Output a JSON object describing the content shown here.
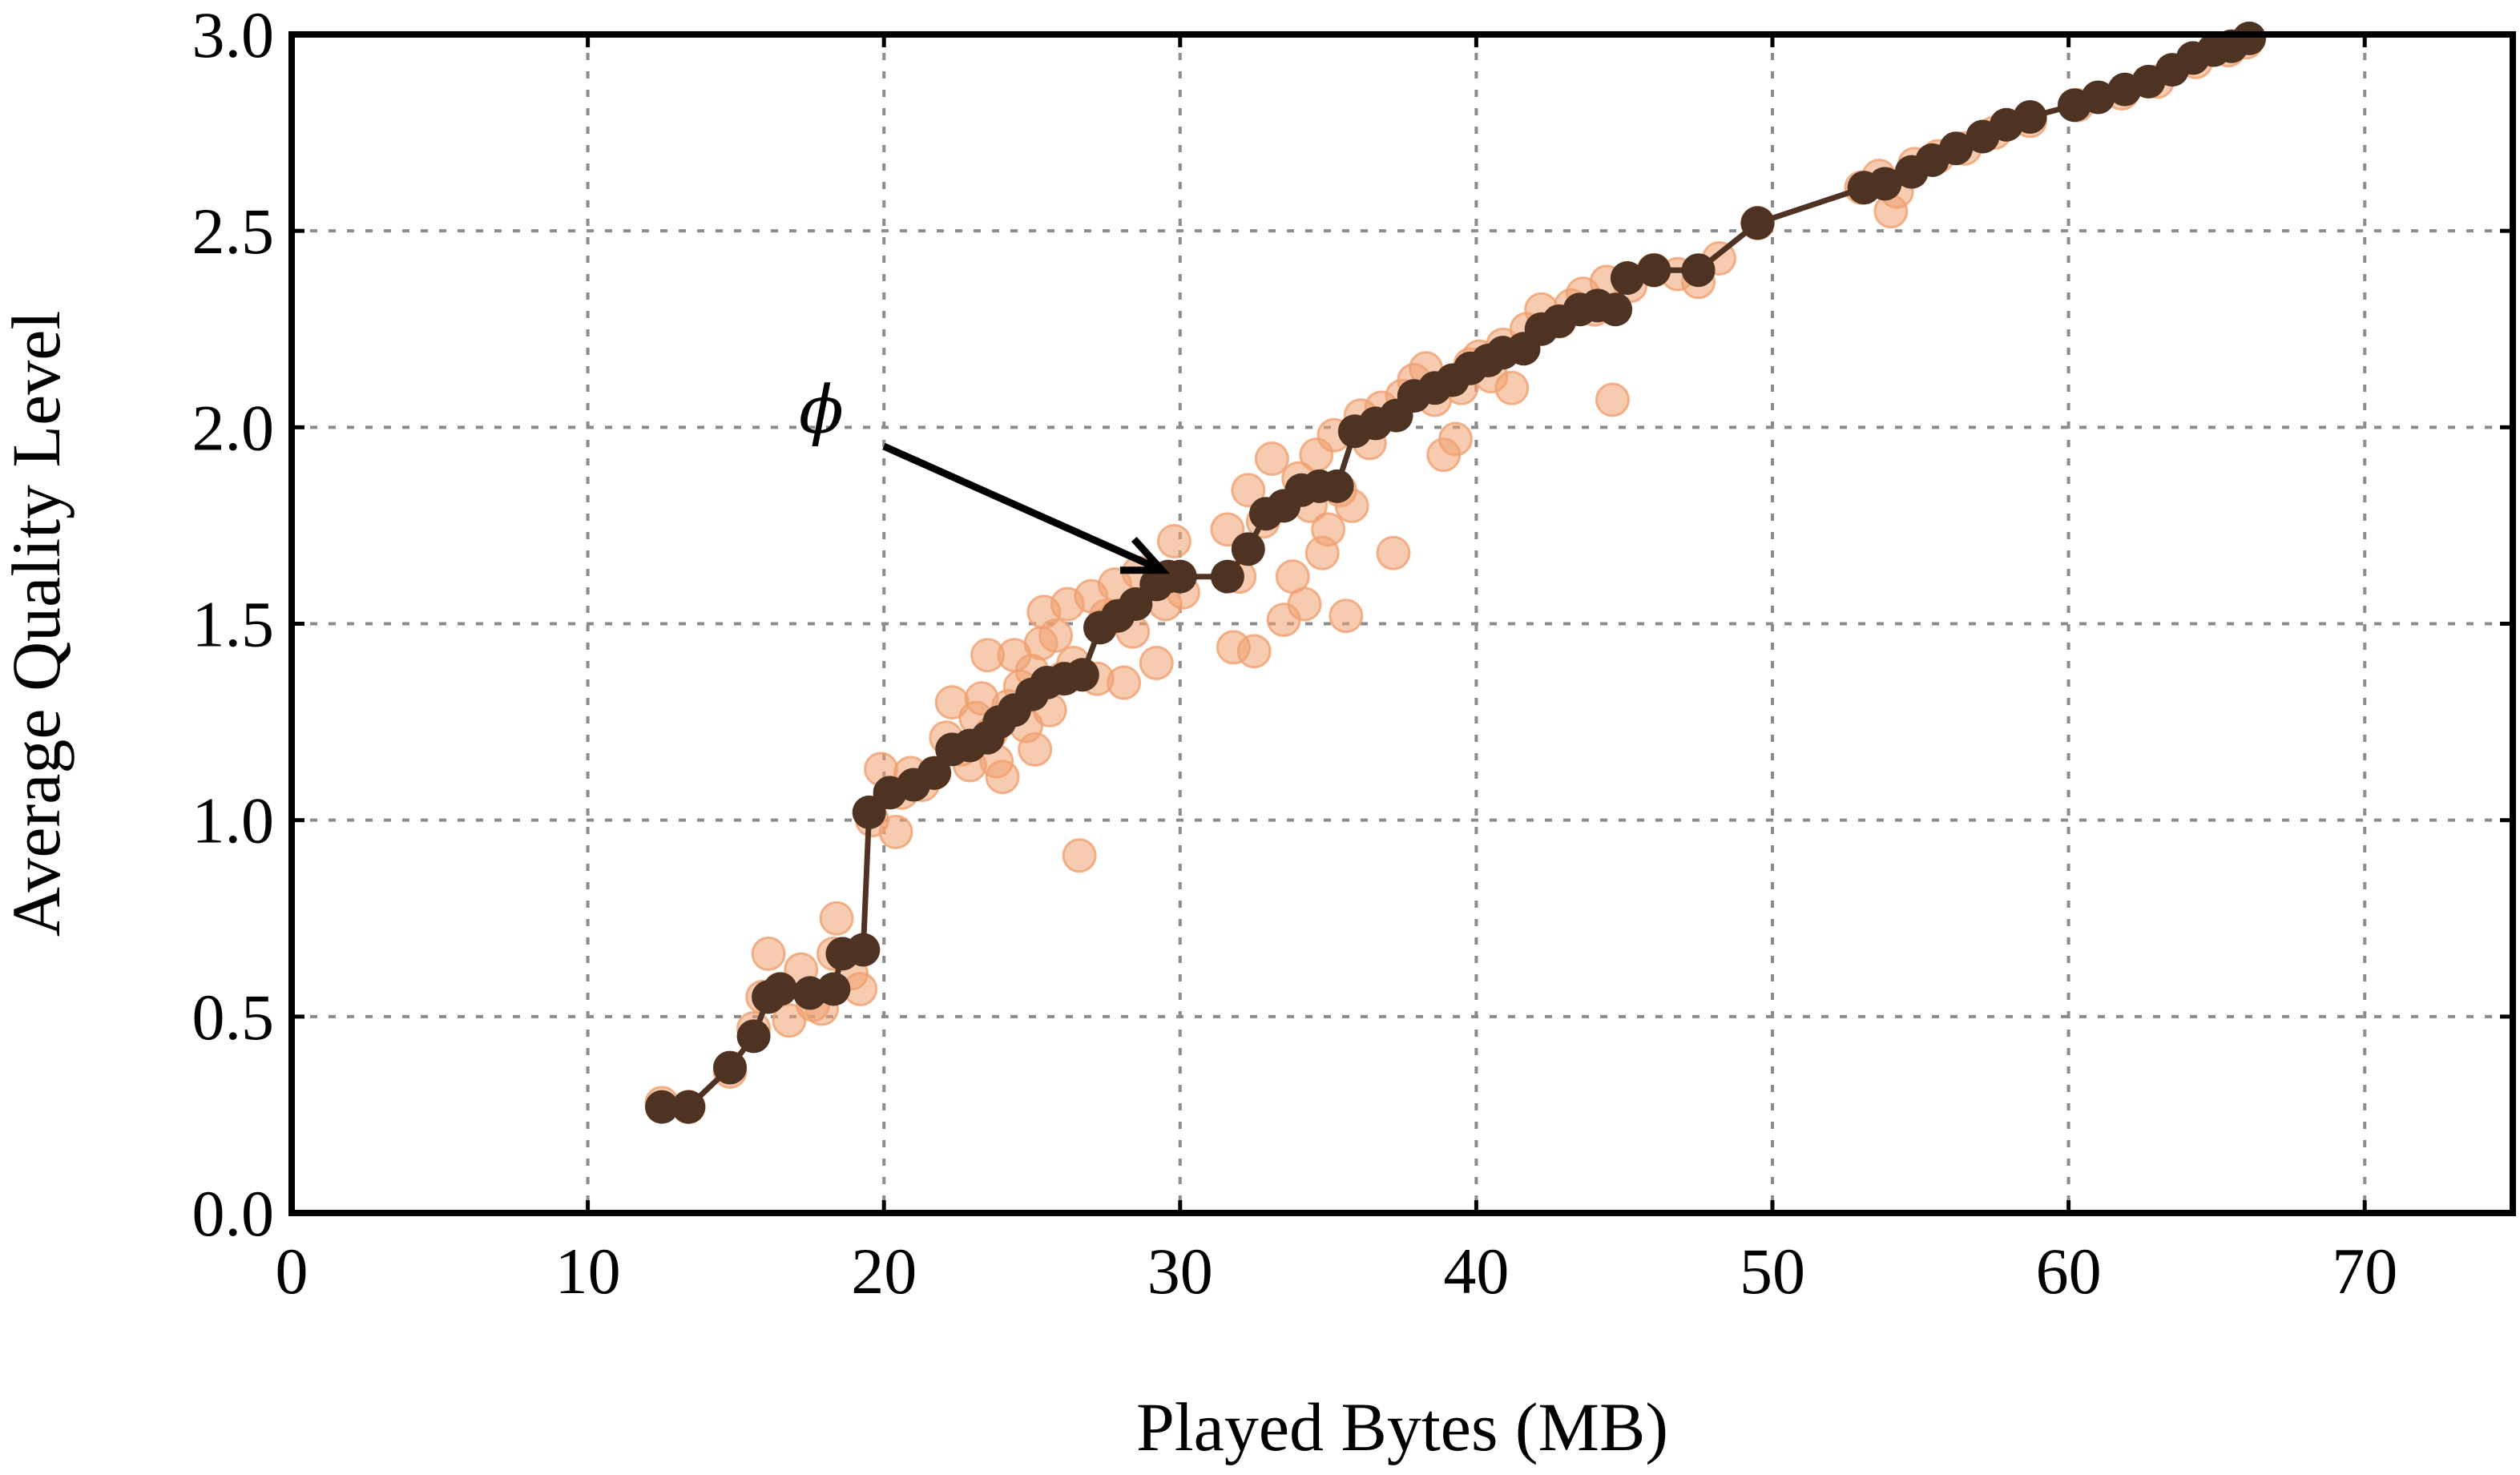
{
  "chart_data": {
    "type": "scatter",
    "title": "",
    "xlabel": "Played Bytes (MB)",
    "ylabel": "Average Quality Level",
    "xlim": [
      0,
      75
    ],
    "ylim": [
      0.0,
      3.0
    ],
    "x_ticks": [
      0,
      10,
      20,
      30,
      40,
      50,
      60,
      70
    ],
    "x_tick_labels": [
      "0",
      "10",
      "20",
      "30",
      "40",
      "50",
      "60",
      "70"
    ],
    "y_ticks": [
      0.0,
      0.5,
      1.0,
      1.5,
      2.0,
      2.5,
      3.0
    ],
    "y_tick_labels": [
      "0.0",
      "0.5",
      "1.0",
      "1.5",
      "2.0",
      "2.5",
      "3.0"
    ],
    "grid": true,
    "legend": "none",
    "annotation": {
      "text": "ϕ",
      "points_to": [
        29.6,
        1.62
      ]
    },
    "colors": {
      "scatter": "#f0a070",
      "frontier": "#4e3322"
    },
    "series": [
      {
        "kind": "scatter",
        "points": [
          [
            12.5,
            0.28
          ],
          [
            13.4,
            0.27
          ],
          [
            14.8,
            0.36
          ],
          [
            15.6,
            0.47
          ],
          [
            15.9,
            0.55
          ],
          [
            16.1,
            0.66
          ],
          [
            16.5,
            0.57
          ],
          [
            16.8,
            0.49
          ],
          [
            17.2,
            0.62
          ],
          [
            17.6,
            0.53
          ],
          [
            17.9,
            0.52
          ],
          [
            18.3,
            0.66
          ],
          [
            18.4,
            0.75
          ],
          [
            18.9,
            0.61
          ],
          [
            19.2,
            0.57
          ],
          [
            19.6,
            1.0
          ],
          [
            19.9,
            1.13
          ],
          [
            20.4,
            0.97
          ],
          [
            20.6,
            1.07
          ],
          [
            20.9,
            1.12
          ],
          [
            21.3,
            1.09
          ],
          [
            21.7,
            1.12
          ],
          [
            22.1,
            1.21
          ],
          [
            22.3,
            1.3
          ],
          [
            22.6,
            1.18
          ],
          [
            22.9,
            1.14
          ],
          [
            23.1,
            1.26
          ],
          [
            23.3,
            1.31
          ],
          [
            23.5,
            1.42
          ],
          [
            23.6,
            1.22
          ],
          [
            23.8,
            1.15
          ],
          [
            24.0,
            1.11
          ],
          [
            24.2,
            1.29
          ],
          [
            24.4,
            1.42
          ],
          [
            24.6,
            1.34
          ],
          [
            24.8,
            1.24
          ],
          [
            25.0,
            1.38
          ],
          [
            25.1,
            1.18
          ],
          [
            25.3,
            1.45
          ],
          [
            25.4,
            1.53
          ],
          [
            25.6,
            1.28
          ],
          [
            25.8,
            1.47
          ],
          [
            26.0,
            1.36
          ],
          [
            26.2,
            1.55
          ],
          [
            26.4,
            1.4
          ],
          [
            26.6,
            0.91
          ],
          [
            27.0,
            1.57
          ],
          [
            27.2,
            1.36
          ],
          [
            27.5,
            1.52
          ],
          [
            27.8,
            1.6
          ],
          [
            28.1,
            1.35
          ],
          [
            28.4,
            1.48
          ],
          [
            28.6,
            1.63
          ],
          [
            29.2,
            1.4
          ],
          [
            29.5,
            1.55
          ],
          [
            29.8,
            1.71
          ],
          [
            30.1,
            1.58
          ],
          [
            31.6,
            1.74
          ],
          [
            31.8,
            1.44
          ],
          [
            32.0,
            1.62
          ],
          [
            32.3,
            1.84
          ],
          [
            32.5,
            1.43
          ],
          [
            32.8,
            1.76
          ],
          [
            33.1,
            1.92
          ],
          [
            33.5,
            1.51
          ],
          [
            33.8,
            1.62
          ],
          [
            34.0,
            1.87
          ],
          [
            34.2,
            1.55
          ],
          [
            34.4,
            1.8
          ],
          [
            34.6,
            1.93
          ],
          [
            34.8,
            1.68
          ],
          [
            35.0,
            1.74
          ],
          [
            35.2,
            1.98
          ],
          [
            35.4,
            1.84
          ],
          [
            35.6,
            1.52
          ],
          [
            35.8,
            1.8
          ],
          [
            36.1,
            2.03
          ],
          [
            36.4,
            1.96
          ],
          [
            36.8,
            2.05
          ],
          [
            37.2,
            1.68
          ],
          [
            37.5,
            2.08
          ],
          [
            37.9,
            2.12
          ],
          [
            38.3,
            2.15
          ],
          [
            38.6,
            2.07
          ],
          [
            38.9,
            1.93
          ],
          [
            39.3,
            1.97
          ],
          [
            39.5,
            2.1
          ],
          [
            39.8,
            2.16
          ],
          [
            40.1,
            2.18
          ],
          [
            40.5,
            2.13
          ],
          [
            40.9,
            2.21
          ],
          [
            41.2,
            2.1
          ],
          [
            41.7,
            2.25
          ],
          [
            42.2,
            2.3
          ],
          [
            42.8,
            2.27
          ],
          [
            43.2,
            2.31
          ],
          [
            43.6,
            2.34
          ],
          [
            44.0,
            2.3
          ],
          [
            44.4,
            2.37
          ],
          [
            44.6,
            2.07
          ],
          [
            45.2,
            2.36
          ],
          [
            46.0,
            2.4
          ],
          [
            46.8,
            2.39
          ],
          [
            47.5,
            2.37
          ],
          [
            48.2,
            2.43
          ],
          [
            49.5,
            2.52
          ],
          [
            53.0,
            2.61
          ],
          [
            53.6,
            2.64
          ],
          [
            54.0,
            2.55
          ],
          [
            54.2,
            2.6
          ],
          [
            54.8,
            2.67
          ],
          [
            55.6,
            2.69
          ],
          [
            56.5,
            2.71
          ],
          [
            57.5,
            2.75
          ],
          [
            58.7,
            2.78
          ],
          [
            60.3,
            2.82
          ],
          [
            61.8,
            2.85
          ],
          [
            63.0,
            2.88
          ],
          [
            64.3,
            2.93
          ],
          [
            65.4,
            2.96
          ],
          [
            66.0,
            2.98
          ]
        ]
      },
      {
        "kind": "line+markers",
        "points": [
          [
            12.5,
            0.27
          ],
          [
            13.4,
            0.27
          ],
          [
            14.8,
            0.37
          ],
          [
            15.6,
            0.45
          ],
          [
            16.1,
            0.55
          ],
          [
            16.5,
            0.57
          ],
          [
            17.5,
            0.56
          ],
          [
            18.3,
            0.57
          ],
          [
            18.6,
            0.66
          ],
          [
            19.3,
            0.67
          ],
          [
            19.5,
            1.02
          ],
          [
            20.2,
            1.07
          ],
          [
            21.0,
            1.09
          ],
          [
            21.7,
            1.12
          ],
          [
            22.3,
            1.18
          ],
          [
            22.9,
            1.19
          ],
          [
            23.5,
            1.21
          ],
          [
            23.9,
            1.25
          ],
          [
            24.4,
            1.28
          ],
          [
            25.0,
            1.32
          ],
          [
            25.5,
            1.35
          ],
          [
            26.1,
            1.36
          ],
          [
            26.7,
            1.37
          ],
          [
            27.3,
            1.49
          ],
          [
            27.9,
            1.52
          ],
          [
            28.5,
            1.55
          ],
          [
            29.2,
            1.6
          ],
          [
            29.6,
            1.62
          ],
          [
            30.0,
            1.62
          ],
          [
            31.6,
            1.62
          ],
          [
            32.3,
            1.69
          ],
          [
            32.9,
            1.78
          ],
          [
            33.5,
            1.8
          ],
          [
            34.1,
            1.84
          ],
          [
            34.7,
            1.85
          ],
          [
            35.3,
            1.85
          ],
          [
            35.9,
            1.99
          ],
          [
            36.6,
            2.01
          ],
          [
            37.3,
            2.03
          ],
          [
            37.9,
            2.08
          ],
          [
            38.6,
            2.1
          ],
          [
            39.2,
            2.12
          ],
          [
            39.8,
            2.15
          ],
          [
            40.4,
            2.17
          ],
          [
            40.9,
            2.19
          ],
          [
            41.6,
            2.2
          ],
          [
            42.2,
            2.25
          ],
          [
            42.8,
            2.27
          ],
          [
            43.5,
            2.3
          ],
          [
            44.1,
            2.31
          ],
          [
            44.7,
            2.3
          ],
          [
            45.1,
            2.38
          ],
          [
            46.0,
            2.4
          ],
          [
            47.5,
            2.4
          ],
          [
            49.5,
            2.52
          ],
          [
            53.1,
            2.61
          ],
          [
            53.8,
            2.62
          ],
          [
            54.7,
            2.65
          ],
          [
            55.4,
            2.68
          ],
          [
            56.2,
            2.71
          ],
          [
            57.1,
            2.74
          ],
          [
            57.9,
            2.77
          ],
          [
            58.7,
            2.79
          ],
          [
            60.2,
            2.82
          ],
          [
            61.0,
            2.84
          ],
          [
            61.9,
            2.86
          ],
          [
            62.7,
            2.88
          ],
          [
            63.5,
            2.91
          ],
          [
            64.2,
            2.94
          ],
          [
            64.9,
            2.96
          ],
          [
            65.5,
            2.97
          ],
          [
            66.1,
            2.99
          ]
        ]
      }
    ]
  }
}
